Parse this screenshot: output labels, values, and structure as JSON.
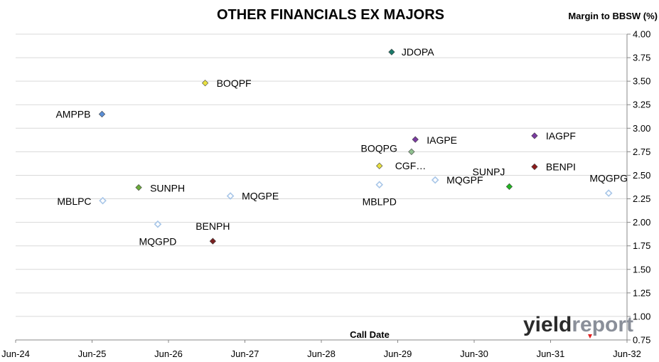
{
  "chart_data": {
    "type": "scatter",
    "title": "OTHER FINANCIALS EX MAJORS",
    "ylabel": "Margin to BBSW (%)",
    "xlabel": "Call Date",
    "ylim": [
      0.75,
      4.0
    ],
    "yticks": [
      "4.00",
      "3.75",
      "3.50",
      "3.25",
      "3.00",
      "2.75",
      "2.50",
      "2.25",
      "2.00",
      "1.75",
      "1.50",
      "1.25",
      "1.00",
      "0.75"
    ],
    "xticks": [
      "Jun-24",
      "Jun-25",
      "Jun-26",
      "Jun-27",
      "Jun-28",
      "Jun-29",
      "Jun-30",
      "Jun-31",
      "Jun-32"
    ],
    "grid": "horizontal",
    "points": [
      {
        "label": "JDOPA",
        "x": 2029.42,
        "y": 3.81,
        "color": "#1a7a6a",
        "filled": true
      },
      {
        "label": "BOQPF",
        "x": 2026.98,
        "y": 3.48,
        "color": "#e8e040",
        "filled": true
      },
      {
        "label": "AMPPB",
        "x": 2025.63,
        "y": 3.15,
        "color": "#5b8fd6",
        "filled": true
      },
      {
        "label": "IAGPE",
        "x": 2029.73,
        "y": 2.88,
        "color": "#7a3aa0",
        "filled": true
      },
      {
        "label": "IAGPF",
        "x": 2031.29,
        "y": 2.92,
        "color": "#7a3aa0",
        "filled": true
      },
      {
        "label": "BOQPG",
        "x": 2029.68,
        "y": 2.75,
        "color": "#8fc08f",
        "filled": true
      },
      {
        "label": "CGF…",
        "x": 2029.26,
        "y": 2.6,
        "color": "#e8e040",
        "filled": true
      },
      {
        "label": "BENPI",
        "x": 2031.29,
        "y": 2.59,
        "color": "#8b1a1a",
        "filled": true
      },
      {
        "label": "SUNPJ",
        "x": 2030.96,
        "y": 2.38,
        "color": "#22b522",
        "filled": true
      },
      {
        "label": "MQGPF",
        "x": 2029.99,
        "y": 2.45,
        "color": "#a8c6e8",
        "filled": false
      },
      {
        "label": "MBLPD",
        "x": 2029.26,
        "y": 2.4,
        "color": "#a8c6e8",
        "filled": false
      },
      {
        "label": "MQGPG",
        "x": 2032.26,
        "y": 2.31,
        "color": "#a8c6e8",
        "filled": false
      },
      {
        "label": "SUNPH",
        "x": 2026.11,
        "y": 2.37,
        "color": "#6aaa3a",
        "filled": true
      },
      {
        "label": "MQGPE",
        "x": 2027.31,
        "y": 2.28,
        "color": "#a8c6e8",
        "filled": false
      },
      {
        "label": "MBLPC",
        "x": 2025.64,
        "y": 2.23,
        "color": "#a8c6e8",
        "filled": false
      },
      {
        "label": "MQGPD",
        "x": 2026.36,
        "y": 1.98,
        "color": "#a8c6e8",
        "filled": false
      },
      {
        "label": "BENPH",
        "x": 2027.08,
        "y": 1.8,
        "color": "#7a2020",
        "filled": true
      }
    ]
  },
  "watermark": {
    "part1": "yield",
    "part2": "report"
  }
}
